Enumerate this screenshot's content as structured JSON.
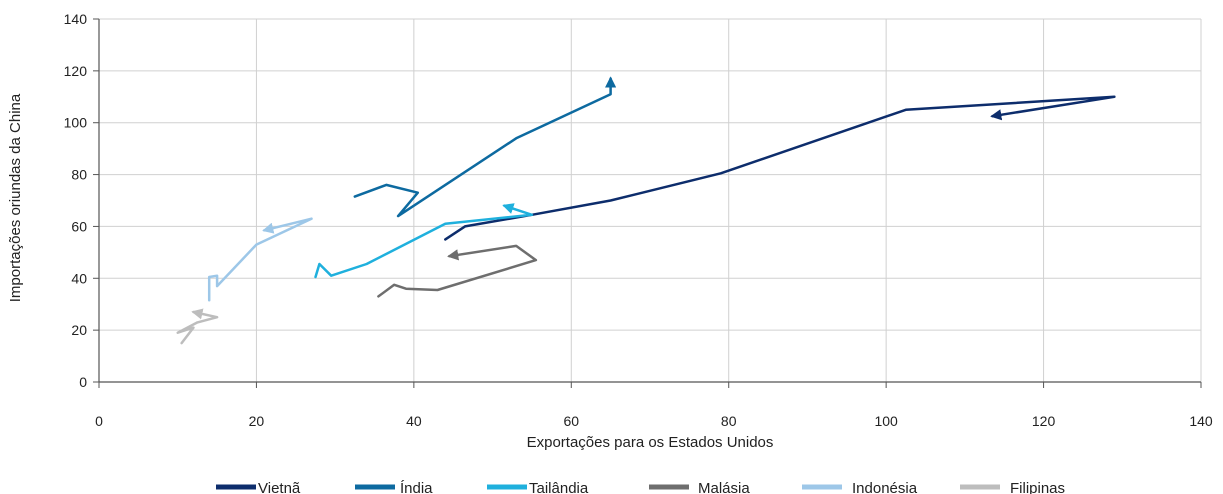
{
  "chart_data": {
    "type": "line",
    "xlabel": "Exportações para os Estados Unidos",
    "ylabel": "Importações oriundas da China",
    "xlim": [
      0,
      140
    ],
    "ylim": [
      0,
      140
    ],
    "x_ticks": [
      0,
      20,
      40,
      60,
      80,
      100,
      120,
      140
    ],
    "y_ticks": [
      0,
      20,
      40,
      60,
      80,
      100,
      120,
      140
    ],
    "grid": true,
    "legend_position": "bottom",
    "series": [
      {
        "name": "Vietnã",
        "color": "#0d2d6c",
        "points": [
          [
            44,
            55
          ],
          [
            46.5,
            60
          ],
          [
            55,
            64.5
          ],
          [
            65,
            70
          ],
          [
            79,
            80.5
          ],
          [
            102.5,
            105
          ],
          [
            129,
            110
          ],
          [
            113.5,
            102.5
          ]
        ]
      },
      {
        "name": "Índia",
        "color": "#0d6aa0",
        "points": [
          [
            32.5,
            71.5
          ],
          [
            36.5,
            76
          ],
          [
            40.5,
            73
          ],
          [
            38,
            64
          ],
          [
            53,
            94
          ],
          [
            65,
            111
          ],
          [
            65,
            117
          ]
        ]
      },
      {
        "name": "Tailândia",
        "color": "#1fb0dd",
        "points": [
          [
            27.5,
            40.5
          ],
          [
            28,
            45.5
          ],
          [
            29.5,
            41
          ],
          [
            34,
            45.5
          ],
          [
            44,
            61
          ],
          [
            55,
            64.5
          ],
          [
            51.5,
            68
          ]
        ]
      },
      {
        "name": "Malásia",
        "color": "#6e6e6e",
        "points": [
          [
            35.5,
            33
          ],
          [
            37.5,
            37.5
          ],
          [
            39,
            36
          ],
          [
            43,
            35.5
          ],
          [
            55.5,
            47
          ],
          [
            53,
            52.5
          ],
          [
            44.5,
            48.5
          ]
        ]
      },
      {
        "name": "Indonésia",
        "color": "#9dc7e8",
        "points": [
          [
            14,
            31.5
          ],
          [
            14,
            40.5
          ],
          [
            15,
            41
          ],
          [
            15,
            37
          ],
          [
            20,
            53
          ],
          [
            27,
            63
          ],
          [
            21,
            58.5
          ]
        ]
      },
      {
        "name": "Filipinas",
        "color": "#bdbdbd",
        "points": [
          [
            10.5,
            15
          ],
          [
            12,
            21
          ],
          [
            10,
            19
          ],
          [
            12.5,
            23
          ],
          [
            15,
            25
          ],
          [
            12,
            27
          ]
        ]
      }
    ]
  }
}
